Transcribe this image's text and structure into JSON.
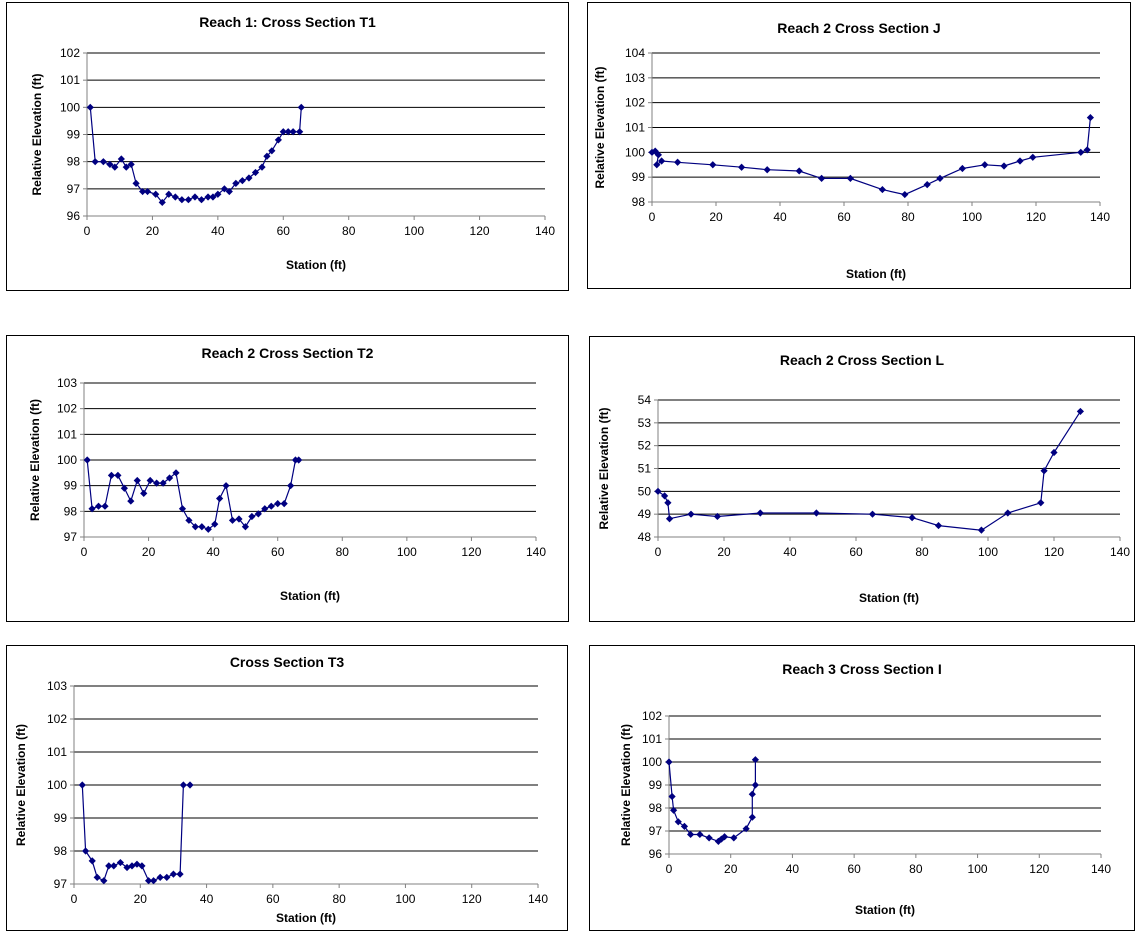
{
  "chart_data": [
    {
      "type": "line",
      "title": "Reach 1: Cross Section T1",
      "xlabel": "Station (ft)",
      "ylabel": "Relative Elevation (ft)",
      "xlim": [
        0,
        140
      ],
      "ylim": [
        96,
        102
      ],
      "xticks": [
        0,
        20,
        40,
        60,
        80,
        100,
        120,
        140
      ],
      "yticks": [
        96,
        97,
        98,
        99,
        100,
        101,
        102
      ],
      "grid": "horizontal",
      "color": "#000080",
      "series": [
        {
          "x": [
            1,
            2.5,
            5,
            7,
            8.5,
            10.5,
            12,
            13.5,
            15,
            17,
            18.5,
            21,
            23,
            25,
            27,
            29,
            31,
            33,
            35,
            37,
            38.5,
            40,
            42,
            43.5,
            45.5,
            47.5,
            49.5,
            51.5,
            53.5,
            55,
            56.5,
            58.5,
            60,
            61.5,
            63,
            65,
            65.5
          ],
          "y": [
            100,
            98,
            98,
            97.9,
            97.8,
            98.1,
            97.8,
            97.9,
            97.2,
            96.9,
            96.9,
            96.8,
            96.5,
            96.8,
            96.7,
            96.6,
            96.6,
            96.7,
            96.6,
            96.7,
            96.7,
            96.8,
            97,
            96.9,
            97.2,
            97.3,
            97.4,
            97.6,
            97.8,
            98.2,
            98.4,
            98.8,
            99.1,
            99.1,
            99.1,
            99.1,
            100
          ]
        }
      ]
    },
    {
      "type": "line",
      "title": "Reach 2 Cross Section J",
      "xlabel": "Station (ft)",
      "ylabel": "Relative Elevation (ft)",
      "xlim": [
        0,
        140
      ],
      "ylim": [
        98,
        104
      ],
      "xticks": [
        0,
        20,
        40,
        60,
        80,
        100,
        120,
        140
      ],
      "yticks": [
        98,
        99,
        100,
        101,
        102,
        103,
        104
      ],
      "grid": "horizontal",
      "color": "#000080",
      "series": [
        {
          "x": [
            0,
            1,
            2,
            1.5,
            3,
            8,
            19,
            28,
            36,
            46,
            53,
            62,
            72,
            79,
            86,
            90,
            97,
            104,
            110,
            115,
            119,
            134,
            136,
            137
          ],
          "y": [
            100,
            100.05,
            99.9,
            99.5,
            99.65,
            99.6,
            99.5,
            99.4,
            99.3,
            99.25,
            98.95,
            98.95,
            98.5,
            98.3,
            98.7,
            98.95,
            99.35,
            99.5,
            99.45,
            99.65,
            99.8,
            100,
            100.1,
            101.4
          ]
        }
      ]
    },
    {
      "type": "line",
      "title": "Reach 2 Cross Section T2",
      "xlabel": "Station (ft)",
      "ylabel": "Relative Elevation (ft)",
      "xlim": [
        0,
        140
      ],
      "ylim": [
        97,
        103
      ],
      "xticks": [
        0,
        20,
        40,
        60,
        80,
        100,
        120,
        140
      ],
      "yticks": [
        97,
        98,
        99,
        100,
        101,
        102,
        103
      ],
      "grid": "horizontal",
      "color": "#000080",
      "series": [
        {
          "x": [
            1,
            2.5,
            4.5,
            6.5,
            8.5,
            10.5,
            12.5,
            14.5,
            16.5,
            18.5,
            20.5,
            22.5,
            24.5,
            26.5,
            28.5,
            30.5,
            32.5,
            34.5,
            36.5,
            38.5,
            40.5,
            42,
            44,
            46,
            48,
            50,
            52,
            54,
            56,
            58,
            60,
            62,
            64,
            65.5,
            66.5
          ],
          "y": [
            100,
            98.1,
            98.2,
            98.2,
            99.4,
            99.4,
            98.9,
            98.4,
            99.2,
            98.7,
            99.2,
            99.1,
            99.1,
            99.3,
            99.5,
            98.1,
            97.65,
            97.4,
            97.4,
            97.3,
            97.5,
            98.5,
            99,
            97.65,
            97.7,
            97.4,
            97.8,
            97.9,
            98.1,
            98.2,
            98.3,
            98.3,
            99,
            100,
            100
          ]
        }
      ]
    },
    {
      "type": "line",
      "title": "Reach 2 Cross Section L",
      "xlabel": "Station (ft)",
      "ylabel": "Relative Elevation (ft)",
      "xlim": [
        0,
        140
      ],
      "ylim": [
        48,
        54
      ],
      "xticks": [
        0,
        20,
        40,
        60,
        80,
        100,
        120,
        140
      ],
      "yticks": [
        48,
        49,
        50,
        51,
        52,
        53,
        54
      ],
      "grid": "horizontal",
      "color": "#000080",
      "series": [
        {
          "x": [
            0,
            2,
            3,
            3.5,
            10,
            18,
            31,
            48,
            65,
            77,
            85,
            98,
            106,
            116,
            117,
            120,
            128
          ],
          "y": [
            50,
            49.8,
            49.5,
            48.8,
            49,
            48.9,
            49.05,
            49.05,
            49,
            48.85,
            48.5,
            48.3,
            49.05,
            49.5,
            50.9,
            51.7,
            53.5
          ]
        }
      ]
    },
    {
      "type": "line",
      "title": "Cross Section T3",
      "xlabel": "Station (ft)",
      "ylabel": "Relative Elevation (ft)",
      "xlim": [
        0,
        140
      ],
      "ylim": [
        97,
        103
      ],
      "xticks": [
        0,
        20,
        40,
        60,
        80,
        100,
        120,
        140
      ],
      "yticks": [
        97,
        98,
        99,
        100,
        101,
        102,
        103
      ],
      "grid": "horizontal",
      "color": "#000080",
      "series": [
        {
          "x": [
            2.5,
            3.5,
            5.5,
            7,
            9,
            10.5,
            12,
            14,
            16,
            17.5,
            19,
            20.5,
            22.5,
            24,
            26,
            28,
            30,
            32,
            33,
            35
          ],
          "y": [
            100,
            98,
            97.7,
            97.2,
            97.1,
            97.55,
            97.55,
            97.65,
            97.5,
            97.55,
            97.6,
            97.55,
            97.1,
            97.1,
            97.2,
            97.2,
            97.3,
            97.3,
            100,
            100
          ]
        }
      ]
    },
    {
      "type": "line",
      "title": "Reach 3 Cross Section I",
      "xlabel": "Station (ft)",
      "ylabel": "Relative Elevation (ft)",
      "xlim": [
        0,
        140
      ],
      "ylim": [
        96,
        102
      ],
      "xticks": [
        0,
        20,
        40,
        60,
        80,
        100,
        120,
        140
      ],
      "yticks": [
        96,
        97,
        98,
        99,
        100,
        101,
        102
      ],
      "grid": "horizontal",
      "color": "#000080",
      "series": [
        {
          "x": [
            0,
            1,
            1.5,
            3,
            5,
            7,
            10,
            13,
            16,
            17,
            18,
            21,
            25,
            27,
            27,
            28,
            28
          ],
          "y": [
            100,
            98.5,
            97.9,
            97.4,
            97.2,
            96.85,
            96.85,
            96.7,
            96.55,
            96.65,
            96.75,
            96.7,
            97.1,
            97.6,
            98.6,
            99,
            100.1
          ]
        }
      ]
    }
  ]
}
